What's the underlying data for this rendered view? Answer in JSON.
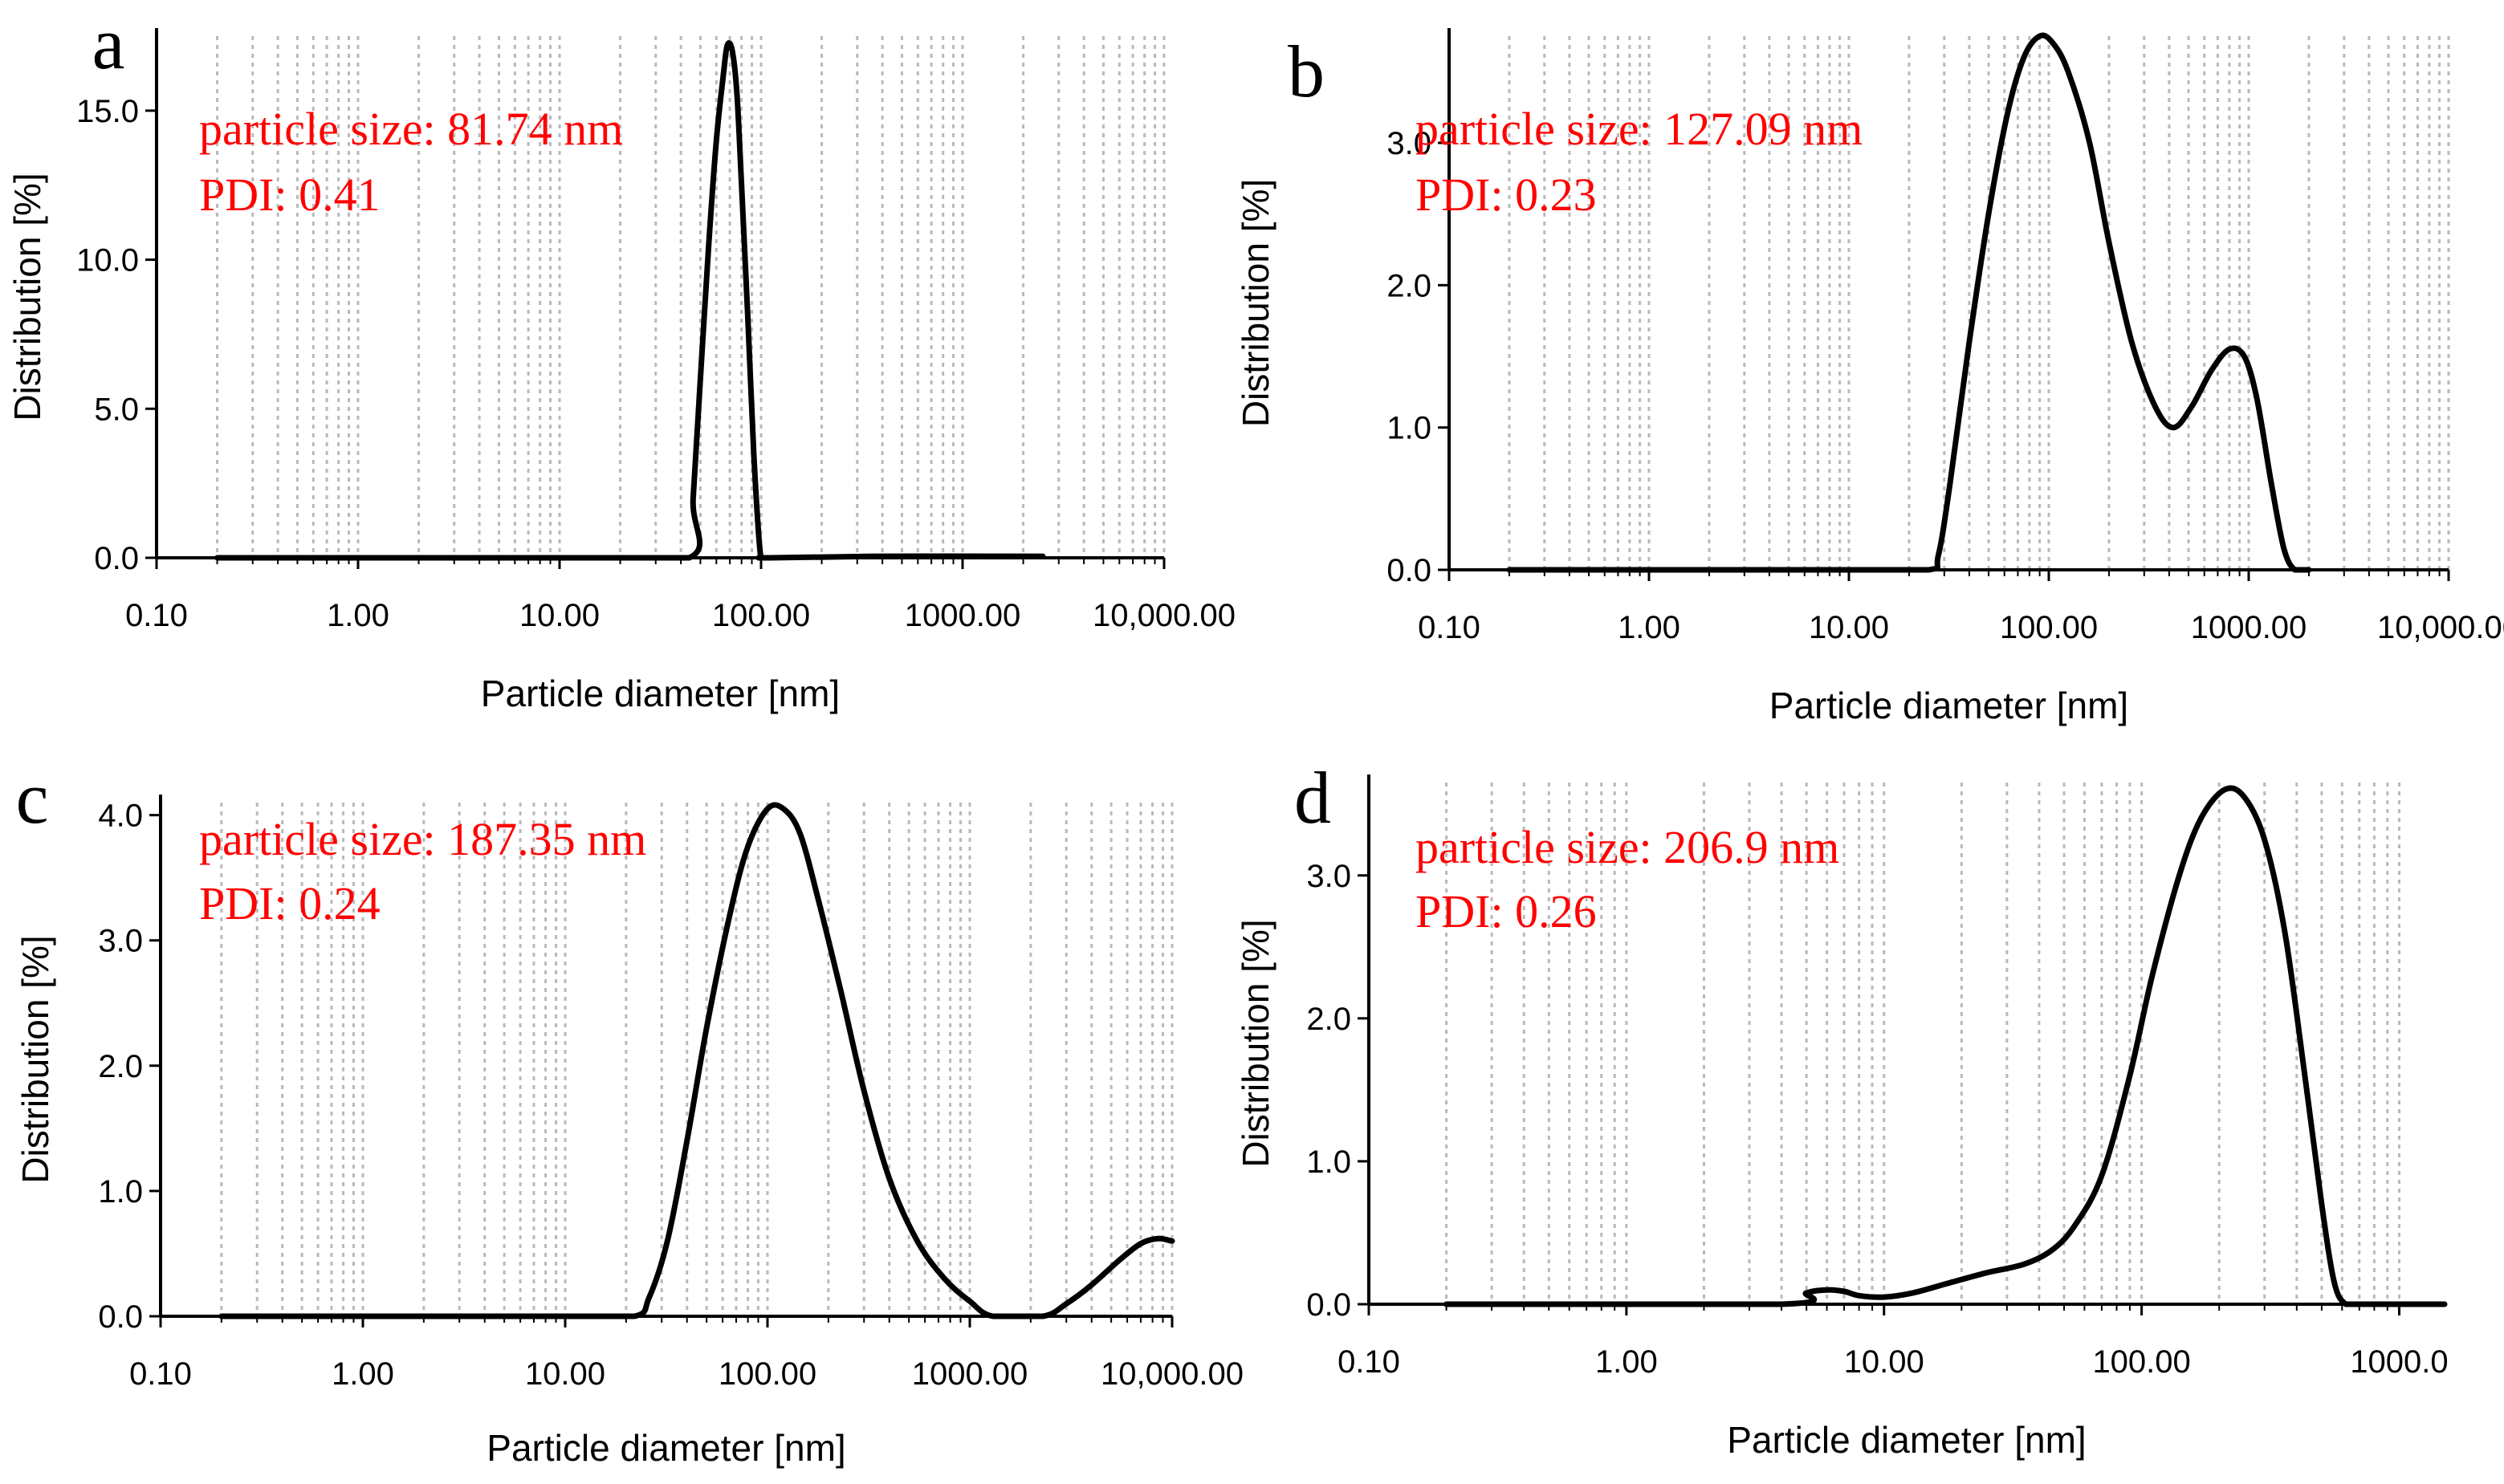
{
  "chart_data": [
    {
      "type": "line",
      "panel": "a",
      "annotation_size": "particle size: 81.74 nm",
      "annotation_pdi": "PDI: 0.41",
      "xlabel": "Particle diameter [nm]",
      "ylabel": "Distribution [%]",
      "xscale": "log",
      "xlim": [
        0.1,
        10000
      ],
      "ylim": [
        0,
        17.5
      ],
      "xticks": [
        0.1,
        1,
        10,
        100,
        1000,
        10000
      ],
      "xtick_labels": [
        "0.10",
        "1.00",
        "10.00",
        "100.00",
        "1000.00",
        "10,000.00"
      ],
      "yticks": [
        0,
        5,
        10,
        15
      ],
      "ytick_labels": [
        "0.0",
        "5.0",
        "10.0",
        "15.0"
      ],
      "grid": true,
      "series": [
        {
          "name": "distribution",
          "x": [
            0.2,
            10,
            44,
            46,
            50,
            55,
            60,
            65,
            68,
            72,
            76,
            80,
            86,
            92,
            98,
            101,
            110,
            400,
            2500
          ],
          "y": [
            0,
            0,
            0,
            2,
            6,
            10.5,
            14,
            16.2,
            17.2,
            17.0,
            15.5,
            12.5,
            8,
            3.5,
            0.5,
            0,
            0,
            0.05,
            0.05
          ]
        }
      ]
    },
    {
      "type": "line",
      "panel": "b",
      "annotation_size": "particle size: 127.09 nm",
      "annotation_pdi": "PDI: 0.23",
      "xlabel": "Particle diameter [nm]",
      "ylabel": "Distribution [%]",
      "xscale": "log",
      "xlim": [
        0.1,
        10000
      ],
      "ylim": [
        0,
        3.75
      ],
      "xticks": [
        0.1,
        1,
        10,
        100,
        1000,
        10000
      ],
      "xtick_labels": [
        "0.10",
        "1.00",
        "10.00",
        "100.00",
        "1000.00",
        "10,000.00"
      ],
      "yticks": [
        0,
        1,
        2,
        3
      ],
      "ytick_labels": [
        "0.0",
        "1.0",
        "2.0",
        "3.0"
      ],
      "grid": true,
      "series": [
        {
          "name": "distribution",
          "x": [
            0.2,
            10,
            25,
            28,
            32,
            40,
            50,
            62,
            75,
            90,
            105,
            125,
            160,
            200,
            260,
            340,
            420,
            520,
            650,
            800,
            950,
            1100,
            1300,
            1500,
            1700,
            2000
          ],
          "y": [
            0,
            0,
            0,
            0.1,
            0.6,
            1.6,
            2.5,
            3.2,
            3.6,
            3.75,
            3.7,
            3.5,
            3.0,
            2.3,
            1.6,
            1.15,
            1.0,
            1.15,
            1.4,
            1.55,
            1.5,
            1.2,
            0.6,
            0.15,
            0,
            0
          ]
        }
      ]
    },
    {
      "type": "line",
      "panel": "c",
      "annotation_size": "particle size: 187.35 nm",
      "annotation_pdi": "PDI: 0.24",
      "xlabel": "Particle diameter [nm]",
      "ylabel": "Distribution [%]",
      "xscale": "log",
      "xlim": [
        0.1,
        10000
      ],
      "ylim": [
        0,
        4.1
      ],
      "xticks": [
        0.1,
        1,
        10,
        100,
        1000,
        10000
      ],
      "xtick_labels": [
        "0.10",
        "1.00",
        "10.00",
        "100.00",
        "1000.00",
        "10,000.00"
      ],
      "yticks": [
        0,
        1,
        2,
        3,
        4
      ],
      "ytick_labels": [
        "0.0",
        "1.0",
        "2.0",
        "3.0",
        "4.0"
      ],
      "grid": true,
      "series": [
        {
          "name": "distribution",
          "x": [
            0.2,
            10,
            22,
            26,
            32,
            40,
            50,
            65,
            80,
            100,
            120,
            145,
            180,
            230,
            300,
            400,
            550,
            750,
            1000,
            1300,
            2300,
            3000,
            4000,
            5500,
            7000,
            8500,
            10000
          ],
          "y": [
            0,
            0,
            0,
            0.15,
            0.6,
            1.4,
            2.3,
            3.2,
            3.75,
            4.05,
            4.05,
            3.85,
            3.3,
            2.6,
            1.8,
            1.1,
            0.6,
            0.3,
            0.12,
            0,
            0,
            0.1,
            0.25,
            0.45,
            0.58,
            0.62,
            0.6
          ]
        }
      ]
    },
    {
      "type": "line",
      "panel": "d",
      "annotation_size": "particle size: 206.9 nm",
      "annotation_pdi": "PDI: 0.26",
      "xlabel": "Particle diameter [nm]",
      "ylabel": "Distribution [%]",
      "xscale": "log",
      "xlim": [
        0.1,
        1500
      ],
      "ylim": [
        0,
        3.65
      ],
      "xticks": [
        0.1,
        1,
        10,
        100,
        1000
      ],
      "xtick_labels": [
        "0.10",
        "1.00",
        "10.00",
        "100.00",
        "1000.0"
      ],
      "yticks": [
        0,
        1,
        2,
        3
      ],
      "ytick_labels": [
        "0.0",
        "1.0",
        "2.0",
        "3.0"
      ],
      "grid": true,
      "series": [
        {
          "name": "distribution",
          "x": [
            0.2,
            4,
            5,
            6,
            7,
            8,
            10,
            13,
            18,
            25,
            35,
            45,
            55,
            70,
            90,
            110,
            140,
            170,
            210,
            250,
            300,
            360,
            430,
            500,
            560,
            620,
            700,
            1500
          ],
          "y": [
            0,
            0,
            0.08,
            0.1,
            0.09,
            0.06,
            0.05,
            0.08,
            0.15,
            0.22,
            0.28,
            0.38,
            0.55,
            0.9,
            1.6,
            2.3,
            3.0,
            3.4,
            3.6,
            3.55,
            3.25,
            2.6,
            1.6,
            0.7,
            0.15,
            0,
            0,
            0
          ]
        }
      ]
    }
  ]
}
